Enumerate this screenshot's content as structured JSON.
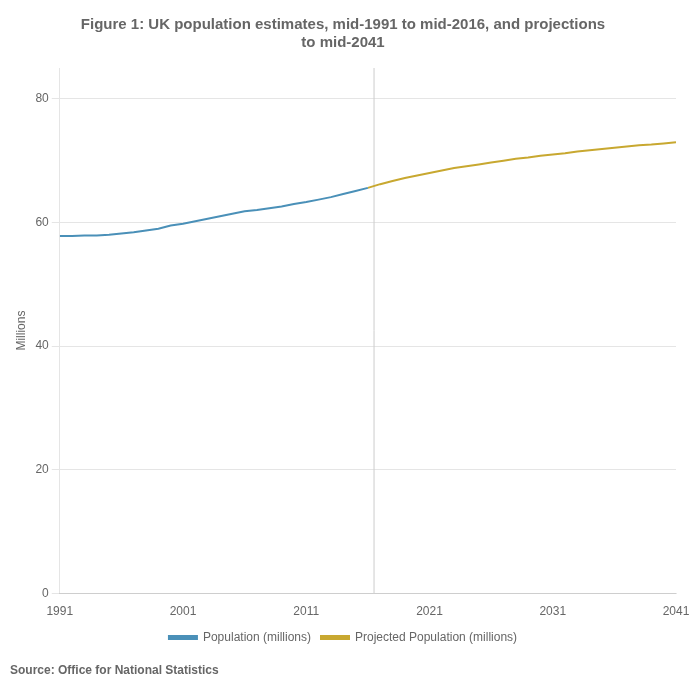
{
  "chart_data": {
    "type": "line",
    "title": "Figure 1: UK population estimates, mid-1991 to mid-2016, and projections\nto mid-2041",
    "y_label": "Millions",
    "source": "Source: Office for National Statistics",
    "series": [
      {
        "name": "Population (millions)",
        "color": "#4a90b8",
        "x": [
          1991,
          1992,
          1993,
          1994,
          1995,
          1996,
          1997,
          1998,
          1999,
          2000,
          2001,
          2002,
          2003,
          2004,
          2005,
          2006,
          2007,
          2008,
          2009,
          2010,
          2011,
          2012,
          2013,
          2014,
          2015,
          2016
        ],
        "values": [
          57.8,
          57.8,
          57.9,
          57.9,
          58.0,
          58.2,
          58.4,
          58.7,
          59.0,
          59.5,
          59.8,
          60.2,
          60.6,
          61.0,
          61.4,
          61.8,
          62.0,
          62.3,
          62.6,
          63.0,
          63.3,
          63.7,
          64.1,
          64.6,
          65.1,
          65.6
        ]
      },
      {
        "name": "Projected Population (millions)",
        "color": "#c8a830",
        "x": [
          2016,
          2017,
          2018,
          2019,
          2020,
          2021,
          2022,
          2023,
          2024,
          2025,
          2026,
          2027,
          2028,
          2029,
          2030,
          2031,
          2032,
          2033,
          2034,
          2035,
          2036,
          2037,
          2038,
          2039,
          2040,
          2041
        ],
        "values": [
          65.6,
          66.2,
          66.7,
          67.2,
          67.6,
          68.0,
          68.4,
          68.8,
          69.1,
          69.4,
          69.7,
          70.0,
          70.3,
          70.5,
          70.8,
          71.0,
          71.2,
          71.5,
          71.7,
          71.9,
          72.1,
          72.3,
          72.5,
          72.6,
          72.8,
          73.0
        ]
      }
    ],
    "vline_x": 2016.5,
    "vline_color": "#cccccc",
    "xlim": [
      1991,
      2041
    ],
    "xticks": [
      1991,
      2001,
      2011,
      2021,
      2031,
      2041
    ],
    "ylim": [
      0,
      85
    ],
    "yticks": [
      0,
      20,
      40,
      60,
      80
    ],
    "grid": "y",
    "legend": "bottom"
  }
}
